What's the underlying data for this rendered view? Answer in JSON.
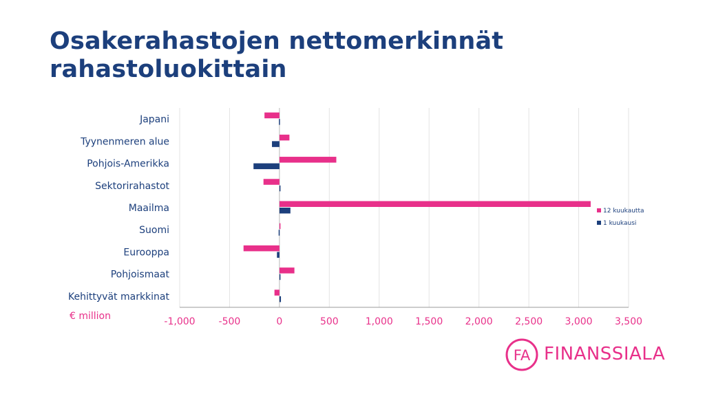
{
  "title": "Osakerahastojen nettomerkinnät rahastoluokittain",
  "colors": {
    "title": "#1c3f7c",
    "series_12": "#e8308a",
    "series_1": "#1c3f7c",
    "tick": "#e8308a",
    "category": "#1c3f7c"
  },
  "chart_data": {
    "type": "bar",
    "orientation": "horizontal",
    "title": "",
    "xlabel": "€ million",
    "ylabel": "",
    "categories": [
      "Japani",
      "Tyynenmeren alue",
      "Pohjois-Amerikka",
      "Sektorirahastot",
      "Maailma",
      "Suomi",
      "Eurooppa",
      "Pohjoismaat",
      "Kehittyvät markkinat"
    ],
    "series": [
      {
        "name": "12 kuukautta",
        "values": [
          -150,
          100,
          570,
          -160,
          3120,
          0,
          -360,
          150,
          -50
        ]
      },
      {
        "name": "1 kuukausi",
        "values": [
          -5,
          -75,
          -260,
          0,
          110,
          -8,
          -25,
          5,
          15
        ]
      }
    ],
    "xlim": [
      -1000,
      3500
    ],
    "xticks": [
      "-1,000",
      "-500",
      "0",
      "500",
      "1,000",
      "1,500",
      "2,000",
      "2,500",
      "3,000",
      "3,500"
    ],
    "grid": true,
    "legend_position": "right"
  },
  "logo": {
    "mark": "FA",
    "text": "FINANSSIALA"
  }
}
